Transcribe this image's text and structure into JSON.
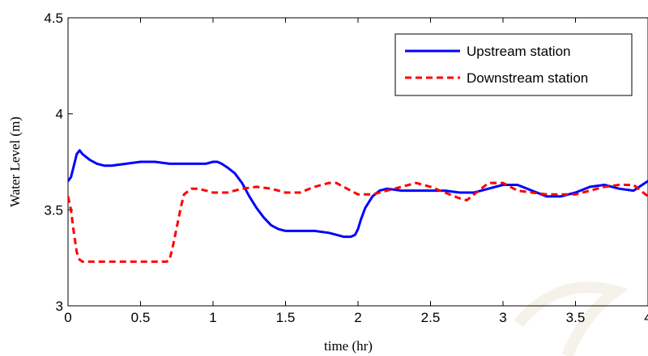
{
  "chart_data": {
    "type": "line",
    "title": "",
    "xlabel": "time (hr)",
    "ylabel": "Water Level (m)",
    "xlim": [
      0,
      4
    ],
    "ylim": [
      3,
      4.5
    ],
    "xticks": [
      0,
      0.5,
      1,
      1.5,
      2,
      2.5,
      3,
      3.5,
      4
    ],
    "xtick_labels": [
      "0",
      "0.5",
      "1",
      "1.5",
      "2",
      "2.5",
      "3",
      "3.5",
      "4"
    ],
    "yticks": [
      3,
      3.5,
      4,
      4.5
    ],
    "ytick_labels": [
      "3",
      "3.5",
      "4",
      "4.5"
    ],
    "grid": false,
    "legend_position": "top-right",
    "series": [
      {
        "name": "Upstream station",
        "color": "#0000ff",
        "style": "solid",
        "x": [
          0,
          0.02,
          0.04,
          0.06,
          0.08,
          0.1,
          0.15,
          0.2,
          0.25,
          0.3,
          0.4,
          0.5,
          0.6,
          0.7,
          0.8,
          0.9,
          0.95,
          1.0,
          1.03,
          1.06,
          1.1,
          1.15,
          1.2,
          1.25,
          1.3,
          1.35,
          1.4,
          1.45,
          1.5,
          1.6,
          1.7,
          1.8,
          1.85,
          1.9,
          1.95,
          1.98,
          2.0,
          2.02,
          2.05,
          2.1,
          2.15,
          2.2,
          2.3,
          2.4,
          2.5,
          2.6,
          2.7,
          2.8,
          2.9,
          3.0,
          3.1,
          3.2,
          3.3,
          3.4,
          3.5,
          3.6,
          3.7,
          3.8,
          3.9,
          4.0
        ],
        "y": [
          3.65,
          3.67,
          3.73,
          3.79,
          3.81,
          3.79,
          3.76,
          3.74,
          3.73,
          3.73,
          3.74,
          3.75,
          3.75,
          3.74,
          3.74,
          3.74,
          3.74,
          3.75,
          3.75,
          3.74,
          3.72,
          3.69,
          3.64,
          3.57,
          3.51,
          3.46,
          3.42,
          3.4,
          3.39,
          3.39,
          3.39,
          3.38,
          3.37,
          3.36,
          3.36,
          3.37,
          3.4,
          3.45,
          3.51,
          3.57,
          3.6,
          3.61,
          3.6,
          3.6,
          3.6,
          3.6,
          3.59,
          3.59,
          3.61,
          3.63,
          3.63,
          3.6,
          3.57,
          3.57,
          3.59,
          3.62,
          3.63,
          3.61,
          3.6,
          3.65
        ]
      },
      {
        "name": "Downstream station",
        "color": "#ff0000",
        "style": "dashed",
        "x": [
          0,
          0.02,
          0.04,
          0.06,
          0.08,
          0.1,
          0.15,
          0.2,
          0.3,
          0.4,
          0.5,
          0.6,
          0.68,
          0.7,
          0.72,
          0.75,
          0.78,
          0.8,
          0.85,
          0.9,
          0.95,
          1.0,
          1.1,
          1.2,
          1.3,
          1.4,
          1.5,
          1.6,
          1.7,
          1.8,
          1.85,
          1.9,
          2.0,
          2.1,
          2.2,
          2.3,
          2.4,
          2.5,
          2.6,
          2.7,
          2.75,
          2.8,
          2.9,
          3.0,
          3.1,
          3.2,
          3.3,
          3.4,
          3.5,
          3.6,
          3.7,
          3.8,
          3.9,
          4.0
        ],
        "y": [
          3.57,
          3.5,
          3.38,
          3.28,
          3.24,
          3.23,
          3.23,
          3.23,
          3.23,
          3.23,
          3.23,
          3.23,
          3.23,
          3.24,
          3.3,
          3.41,
          3.52,
          3.58,
          3.61,
          3.61,
          3.6,
          3.59,
          3.59,
          3.61,
          3.62,
          3.61,
          3.59,
          3.59,
          3.62,
          3.64,
          3.64,
          3.62,
          3.58,
          3.58,
          3.6,
          3.62,
          3.64,
          3.62,
          3.59,
          3.56,
          3.55,
          3.58,
          3.64,
          3.64,
          3.6,
          3.59,
          3.58,
          3.58,
          3.58,
          3.6,
          3.62,
          3.63,
          3.63,
          3.57
        ]
      }
    ]
  },
  "watermark_text": "©"
}
